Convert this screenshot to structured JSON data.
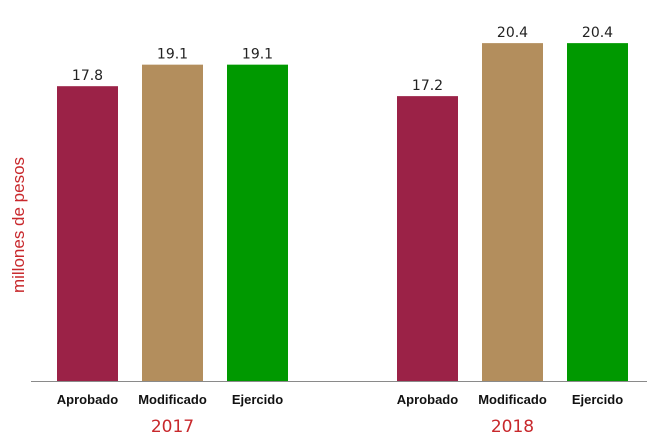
{
  "chart_data": {
    "type": "bar",
    "ylabel": "millones de pesos",
    "ylim": [
      0,
      22.4
    ],
    "grid": false,
    "legend": "none",
    "groups": [
      {
        "label": "2017",
        "bars": [
          {
            "category": "Aprobado",
            "value": 17.8,
            "label": "17.8",
            "color": "#9b2247"
          },
          {
            "category": "Modificado",
            "value": 19.1,
            "label": "19.1",
            "color": "#b38e5d"
          },
          {
            "category": "Ejercido",
            "value": 19.1,
            "label": "19.1",
            "color": "#009900"
          }
        ]
      },
      {
        "label": "2018",
        "bars": [
          {
            "category": "Aprobado",
            "value": 17.2,
            "label": "17.2",
            "color": "#9b2247"
          },
          {
            "category": "Modificado",
            "value": 20.4,
            "label": "20.4",
            "color": "#b38e5d"
          },
          {
            "category": "Ejercido",
            "value": 20.4,
            "label": "20.4",
            "color": "#009900"
          }
        ]
      }
    ]
  }
}
